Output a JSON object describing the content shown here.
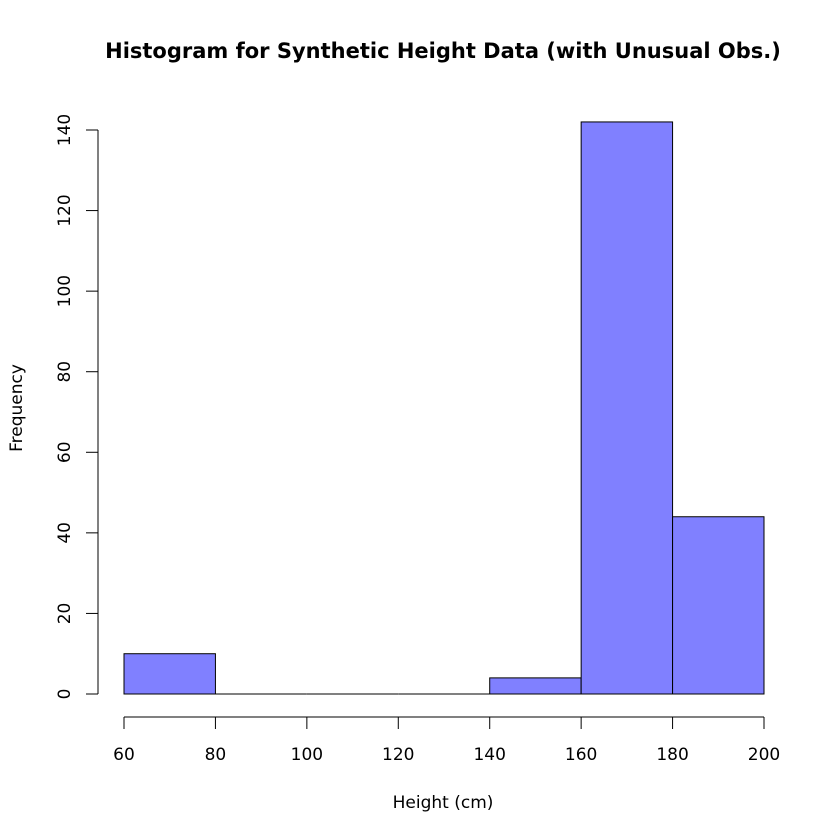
{
  "chart_data": {
    "type": "bar",
    "title": "Histogram for Synthetic Height Data (with Unusual Obs.)",
    "xlabel": "Height (cm)",
    "ylabel": "Frequency",
    "bins": [
      {
        "start": 60,
        "end": 80,
        "count": 10
      },
      {
        "start": 80,
        "end": 100,
        "count": 0
      },
      {
        "start": 100,
        "end": 120,
        "count": 0
      },
      {
        "start": 120,
        "end": 140,
        "count": 0
      },
      {
        "start": 140,
        "end": 160,
        "count": 4
      },
      {
        "start": 160,
        "end": 180,
        "count": 142
      },
      {
        "start": 180,
        "end": 200,
        "count": 44
      }
    ],
    "x_ticks": [
      "60",
      "80",
      "100",
      "120",
      "140",
      "160",
      "180",
      "200"
    ],
    "y_ticks": [
      "0",
      "20",
      "40",
      "60",
      "80",
      "100",
      "120",
      "140"
    ],
    "xlim": [
      60,
      200
    ],
    "ylim": [
      0,
      140
    ],
    "grid": false,
    "legend": "none",
    "bar_color": "#8080ff",
    "edge_color": "#000000"
  }
}
